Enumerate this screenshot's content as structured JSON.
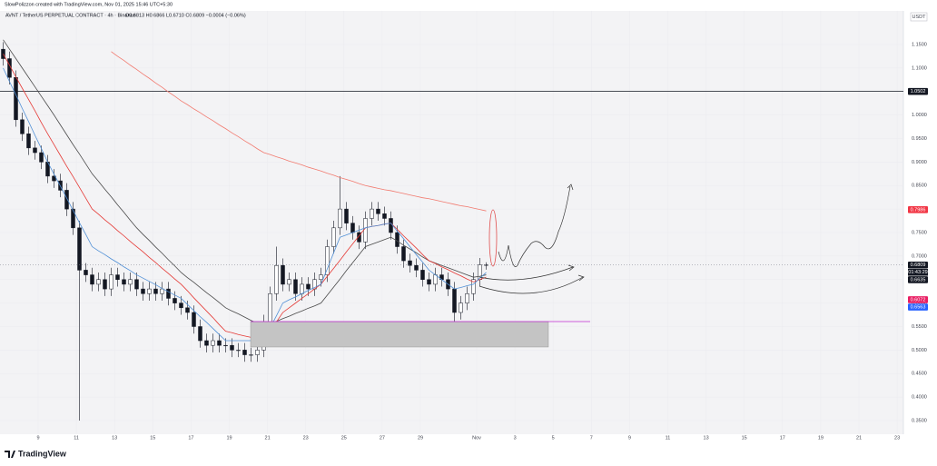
{
  "header": {
    "credit": "SlowPolizzon created with TradingView.com, Nov 01, 2025 15:46 UTC+5:30",
    "symbol": "AVNT / TetherUS PERPETUAL CONTRACT · 4h · Binance",
    "ohlc": "O0.6813 H0.6866 L0.6710 C0.6809 −0.0004 (−0.06%)"
  },
  "footer": {
    "brand": "TradingView"
  },
  "chart_data": {
    "type": "candlestick",
    "currency": "USDT",
    "up_color": "#ffffff",
    "down_color": "#131722",
    "border_color": "#131722",
    "open": [
      1.14,
      1.12,
      1.08,
      0.99,
      0.96,
      0.93,
      0.92,
      0.9,
      0.87,
      0.86,
      0.84,
      0.8,
      0.76,
      0.67,
      0.66,
      0.64,
      0.65,
      0.63,
      0.66,
      0.65,
      0.64,
      0.65,
      0.63,
      0.62,
      0.63,
      0.62,
      0.63,
      0.61,
      0.6,
      0.59,
      0.58,
      0.55,
      0.52,
      0.51,
      0.52,
      0.51,
      0.51,
      0.5,
      0.5,
      0.49,
      0.49,
      0.5,
      0.56,
      0.62,
      0.68,
      0.64,
      0.65,
      0.62,
      0.64,
      0.63,
      0.65,
      0.66,
      0.72,
      0.76,
      0.8,
      0.77,
      0.75,
      0.73,
      0.78,
      0.8,
      0.79,
      0.78,
      0.75,
      0.72,
      0.69,
      0.68,
      0.67,
      0.65,
      0.64,
      0.66,
      0.65,
      0.63,
      0.58,
      0.6,
      0.62,
      0.65,
      0.6813
    ],
    "high": [
      1.155,
      1.135,
      1.095,
      1.005,
      0.975,
      0.945,
      0.935,
      0.915,
      0.885,
      0.875,
      0.855,
      0.815,
      0.775,
      0.685,
      0.675,
      0.665,
      0.665,
      0.675,
      0.675,
      0.665,
      0.665,
      0.665,
      0.645,
      0.645,
      0.645,
      0.645,
      0.645,
      0.625,
      0.615,
      0.605,
      0.595,
      0.565,
      0.535,
      0.535,
      0.535,
      0.525,
      0.525,
      0.515,
      0.515,
      0.505,
      0.515,
      0.575,
      0.635,
      0.72,
      0.695,
      0.665,
      0.665,
      0.655,
      0.655,
      0.665,
      0.675,
      0.735,
      0.775,
      0.87,
      0.815,
      0.785,
      0.765,
      0.795,
      0.815,
      0.815,
      0.805,
      0.795,
      0.765,
      0.735,
      0.705,
      0.695,
      0.685,
      0.665,
      0.675,
      0.675,
      0.665,
      0.645,
      0.615,
      0.635,
      0.665,
      0.696,
      0.6866
    ],
    "low": [
      1.105,
      1.065,
      0.975,
      0.945,
      0.915,
      0.905,
      0.885,
      0.855,
      0.845,
      0.825,
      0.785,
      0.745,
      0.35,
      0.645,
      0.625,
      0.625,
      0.615,
      0.615,
      0.635,
      0.625,
      0.625,
      0.615,
      0.605,
      0.605,
      0.605,
      0.605,
      0.595,
      0.585,
      0.575,
      0.565,
      0.535,
      0.505,
      0.495,
      0.495,
      0.495,
      0.495,
      0.485,
      0.485,
      0.475,
      0.475,
      0.475,
      0.485,
      0.545,
      0.605,
      0.625,
      0.625,
      0.605,
      0.605,
      0.615,
      0.615,
      0.635,
      0.645,
      0.705,
      0.745,
      0.755,
      0.735,
      0.715,
      0.715,
      0.765,
      0.775,
      0.765,
      0.735,
      0.705,
      0.675,
      0.665,
      0.655,
      0.635,
      0.625,
      0.625,
      0.635,
      0.615,
      0.56,
      0.565,
      0.585,
      0.605,
      0.635,
      0.671
    ],
    "close": [
      1.12,
      1.08,
      0.99,
      0.96,
      0.93,
      0.92,
      0.9,
      0.87,
      0.86,
      0.84,
      0.8,
      0.76,
      0.67,
      0.66,
      0.64,
      0.65,
      0.63,
      0.66,
      0.65,
      0.64,
      0.65,
      0.63,
      0.62,
      0.63,
      0.62,
      0.63,
      0.61,
      0.6,
      0.59,
      0.58,
      0.55,
      0.52,
      0.51,
      0.52,
      0.51,
      0.51,
      0.5,
      0.5,
      0.49,
      0.49,
      0.5,
      0.56,
      0.62,
      0.68,
      0.64,
      0.65,
      0.62,
      0.64,
      0.63,
      0.65,
      0.66,
      0.72,
      0.76,
      0.8,
      0.77,
      0.75,
      0.73,
      0.78,
      0.8,
      0.79,
      0.78,
      0.75,
      0.72,
      0.69,
      0.68,
      0.67,
      0.65,
      0.64,
      0.66,
      0.65,
      0.63,
      0.58,
      0.6,
      0.62,
      0.65,
      0.6813,
      0.6809
    ],
    "series": [
      {
        "color": "#4a4a4a",
        "values": [
          1.16,
          1.14,
          1.12,
          1.1,
          1.08,
          1.06,
          1.04,
          1.02,
          1.0,
          0.979,
          0.958,
          0.937,
          0.917,
          0.896,
          0.875,
          0.859,
          0.842,
          0.826,
          0.809,
          0.793,
          0.776,
          0.76,
          0.746,
          0.733,
          0.719,
          0.706,
          0.692,
          0.679,
          0.665,
          0.654,
          0.644,
          0.633,
          0.622,
          0.612,
          0.601,
          0.59,
          0.583,
          0.577,
          0.57,
          0.563,
          0.557,
          0.55,
          0.556,
          0.561,
          0.567,
          0.572,
          0.578,
          0.583,
          0.589,
          0.594,
          0.6,
          0.617,
          0.634,
          0.651,
          0.669,
          0.686,
          0.703,
          0.72,
          0.725,
          0.73,
          0.735,
          0.74,
          0.732,
          0.723,
          0.715,
          0.707,
          0.698,
          0.69,
          0.685,
          0.68,
          0.675,
          0.67,
          0.665,
          0.66,
          0.655,
          0.657,
          0.66
        ]
      },
      {
        "color": "#e53935",
        "values": [
          1.13,
          1.106,
          1.081,
          1.057,
          1.033,
          1.009,
          0.984,
          0.96,
          0.937,
          0.914,
          0.891,
          0.869,
          0.846,
          0.823,
          0.8,
          0.789,
          0.777,
          0.766,
          0.754,
          0.743,
          0.731,
          0.72,
          0.709,
          0.697,
          0.686,
          0.674,
          0.663,
          0.651,
          0.64,
          0.626,
          0.611,
          0.597,
          0.583,
          0.569,
          0.554,
          0.54,
          0.537,
          0.533,
          0.53,
          0.527,
          0.523,
          0.52,
          0.54,
          0.56,
          0.58,
          0.59,
          0.6,
          0.61,
          0.62,
          0.63,
          0.64,
          0.657,
          0.674,
          0.691,
          0.709,
          0.726,
          0.743,
          0.76,
          0.763,
          0.765,
          0.768,
          0.77,
          0.757,
          0.743,
          0.73,
          0.717,
          0.703,
          0.69,
          0.684,
          0.677,
          0.671,
          0.664,
          0.658,
          0.651,
          0.645,
          0.65,
          0.655
        ]
      },
      {
        "color": "#4f8fd6",
        "values": [
          1.1,
          1.071,
          1.043,
          1.014,
          0.986,
          0.957,
          0.929,
          0.9,
          0.874,
          0.849,
          0.823,
          0.797,
          0.771,
          0.746,
          0.72,
          0.711,
          0.703,
          0.694,
          0.686,
          0.677,
          0.669,
          0.66,
          0.653,
          0.646,
          0.639,
          0.631,
          0.624,
          0.617,
          0.61,
          0.597,
          0.584,
          0.571,
          0.559,
          0.546,
          0.533,
          0.52,
          0.52,
          0.52,
          0.52,
          0.52,
          0.52,
          0.52,
          0.547,
          0.573,
          0.6,
          0.607,
          0.613,
          0.62,
          0.627,
          0.633,
          0.64,
          0.673,
          0.707,
          0.74,
          0.745,
          0.75,
          0.755,
          0.76,
          0.763,
          0.765,
          0.768,
          0.77,
          0.753,
          0.737,
          0.72,
          0.703,
          0.687,
          0.67,
          0.66,
          0.65,
          0.64,
          0.63,
          0.633,
          0.637,
          0.64,
          0.653,
          0.665
        ]
      },
      {
        "color": "#f27a6f",
        "values": [
          null,
          null,
          null,
          null,
          null,
          null,
          null,
          null,
          null,
          null,
          null,
          null,
          null,
          null,
          null,
          null,
          null,
          1.135,
          1.125,
          1.116,
          1.106,
          1.097,
          1.087,
          1.078,
          1.068,
          1.059,
          1.049,
          1.04,
          1.03,
          1.022,
          1.013,
          1.005,
          0.996,
          0.988,
          0.979,
          0.971,
          0.962,
          0.954,
          0.945,
          0.937,
          0.928,
          0.92,
          0.916,
          0.911,
          0.907,
          0.902,
          0.898,
          0.894,
          0.889,
          0.885,
          0.881,
          0.876,
          0.872,
          0.867,
          0.863,
          0.859,
          0.854,
          0.85,
          0.847,
          0.844,
          0.841,
          0.839,
          0.836,
          0.833,
          0.83,
          0.827,
          0.824,
          0.822,
          0.819,
          0.816,
          0.813,
          0.81,
          0.807,
          0.805,
          0.802,
          0.799,
          0.796
        ]
      }
    ],
    "ylim": [
      0.321,
      1.2215
    ],
    "yticks": [
      {
        "value": 0.35,
        "label": "0.3500"
      },
      {
        "value": 0.4,
        "label": "0.4000"
      },
      {
        "value": 0.45,
        "label": "0.4500"
      },
      {
        "value": 0.5,
        "label": "0.5000"
      },
      {
        "value": 0.55,
        "label": "0.5500"
      },
      {
        "value": 0.6,
        "label": "0.6000"
      },
      {
        "value": 0.65,
        "label": "0.6500"
      },
      {
        "value": 0.7,
        "label": "0.7000"
      },
      {
        "value": 0.75,
        "label": "0.7500"
      },
      {
        "value": 0.8,
        "label": "0.8000"
      },
      {
        "value": 0.85,
        "label": "0.8500"
      },
      {
        "value": 0.9,
        "label": "0.9000"
      },
      {
        "value": 0.95,
        "label": "0.9500"
      },
      {
        "value": 1.0,
        "label": "1.0000"
      },
      {
        "value": 1.05,
        "label": "1.0500"
      },
      {
        "value": 1.1,
        "label": "1.1000"
      },
      {
        "value": 1.15,
        "label": "1.1500"
      }
    ],
    "xticks": [
      "9",
      "11",
      "13",
      "15",
      "17",
      "19",
      "21",
      "23",
      "25",
      "27",
      "29",
      "Nov",
      "3",
      "5",
      "7",
      "9",
      "11",
      "13",
      "15",
      "17",
      "19",
      "21",
      "23"
    ],
    "level_line": {
      "value": 1.0502,
      "label": "1.0502"
    },
    "price_labels": [
      {
        "value": 0.7986,
        "label": "0.7986",
        "color": "#f23645"
      },
      {
        "value": 0.6809,
        "label": "0.6809",
        "color": "#131722"
      },
      {
        "value": 0.6635,
        "label": "0.6635",
        "color": "#131722"
      },
      {
        "value": 0.6072,
        "label": "0.6072",
        "color": "#e91e63"
      },
      {
        "value": 0.6563,
        "label": "0.6563",
        "color": "#2962ff"
      }
    ],
    "countdown": "01:43:29"
  }
}
